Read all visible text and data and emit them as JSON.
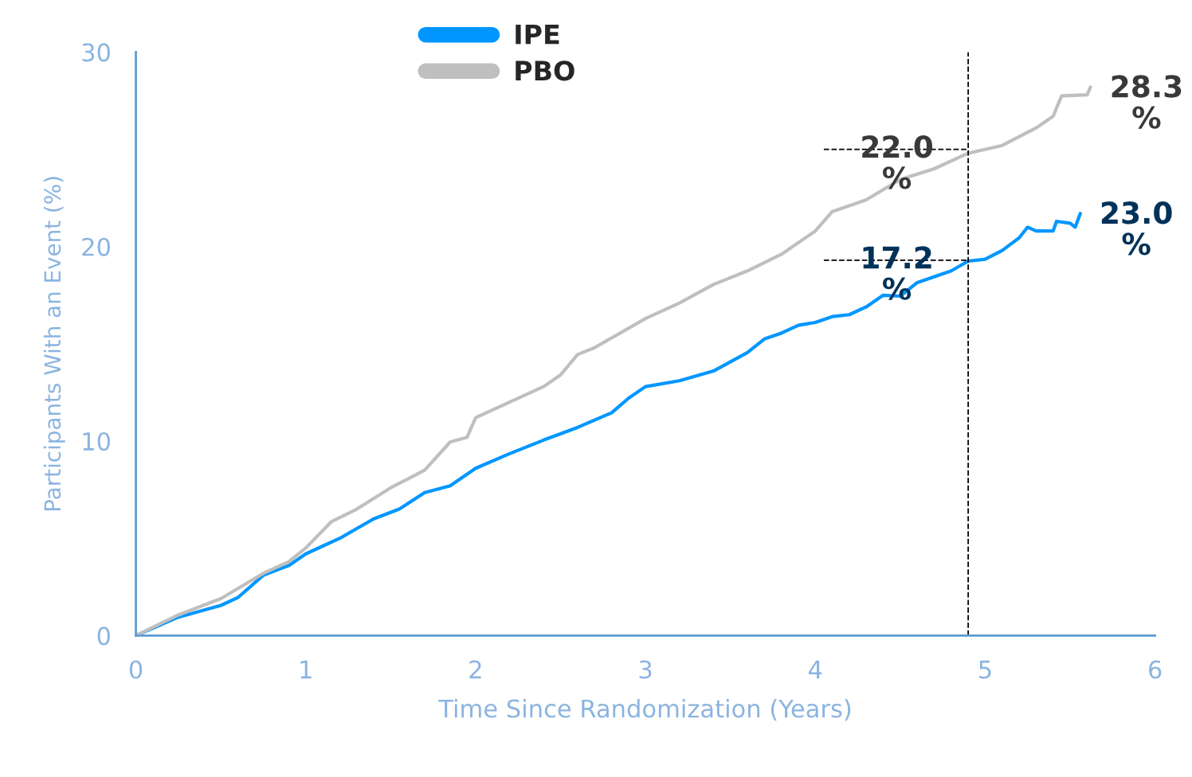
{
  "chart_data": {
    "type": "line",
    "xlabel": "Time Since Randomization (Years)",
    "ylabel": "Participants With an Event (%)",
    "xlim": [
      0,
      6
    ],
    "xticks": [
      0,
      1,
      2,
      3,
      4,
      5,
      6
    ],
    "ylim": [
      0,
      30
    ],
    "yticks": [
      0,
      10,
      20,
      30
    ],
    "grid": false,
    "legend": "top",
    "marker": "none",
    "line_style": "solid",
    "series": [
      {
        "name": "IPE",
        "color": "#0096ff",
        "x": [
          0,
          0.25,
          0.5,
          0.6,
          0.75,
          0.9,
          1.0,
          1.2,
          1.4,
          1.55,
          1.7,
          1.85,
          2.0,
          2.2,
          2.4,
          2.6,
          2.8,
          2.9,
          3.0,
          3.2,
          3.4,
          3.6,
          3.7,
          3.8,
          3.9,
          4.0,
          4.1,
          4.2,
          4.3,
          4.4,
          4.5,
          4.6,
          4.8,
          4.9,
          5.0,
          5.1,
          5.2,
          5.25,
          5.3,
          5.4,
          5.42,
          5.5,
          5.53,
          5.56
        ],
        "values": [
          0,
          0.95,
          1.55,
          1.95,
          3.1,
          3.6,
          4.2,
          5.0,
          6.0,
          6.5,
          7.35,
          7.7,
          8.6,
          9.35,
          10.05,
          10.7,
          11.45,
          12.2,
          12.8,
          13.1,
          13.6,
          14.55,
          15.25,
          15.55,
          15.95,
          16.1,
          16.4,
          16.5,
          16.9,
          17.5,
          17.45,
          18.15,
          18.75,
          19.25,
          19.35,
          19.8,
          20.45,
          21.0,
          20.8,
          20.8,
          21.3,
          21.2,
          21.0,
          21.7
        ]
      },
      {
        "name": "PBO",
        "color": "#bfbfbf",
        "x": [
          0,
          0.25,
          0.5,
          0.75,
          0.9,
          1.0,
          1.15,
          1.3,
          1.5,
          1.7,
          1.85,
          1.95,
          2.0,
          2.2,
          2.4,
          2.5,
          2.6,
          2.7,
          2.85,
          3.0,
          3.2,
          3.4,
          3.6,
          3.8,
          4.0,
          4.1,
          4.3,
          4.5,
          4.7,
          4.9,
          5.1,
          5.3,
          5.4,
          5.45,
          5.6,
          5.62
        ],
        "values": [
          0,
          1.06,
          1.9,
          3.2,
          3.8,
          4.5,
          5.85,
          6.5,
          7.6,
          8.5,
          9.95,
          10.2,
          11.2,
          12.0,
          12.8,
          13.4,
          14.45,
          14.8,
          15.55,
          16.3,
          17.1,
          18.05,
          18.75,
          19.6,
          20.8,
          21.8,
          22.4,
          23.45,
          24.0,
          24.8,
          25.2,
          26.1,
          26.7,
          27.75,
          27.8,
          28.2
        ]
      }
    ],
    "ref_lines": [
      {
        "axis": "x",
        "value": 4.9,
        "color": "#000000",
        "line_style": "dashed"
      }
    ],
    "annotations": [
      {
        "text": "22.0\n%",
        "x": 4.9,
        "y": 25.0
      },
      {
        "text": "17.2\n%",
        "x": 4.9,
        "y": 19.3
      },
      {
        "text": "28.3\n%",
        "x": 5.62,
        "y": 28.2
      },
      {
        "text": "23.0\n%",
        "x": 5.56,
        "y": 21.7
      }
    ]
  }
}
